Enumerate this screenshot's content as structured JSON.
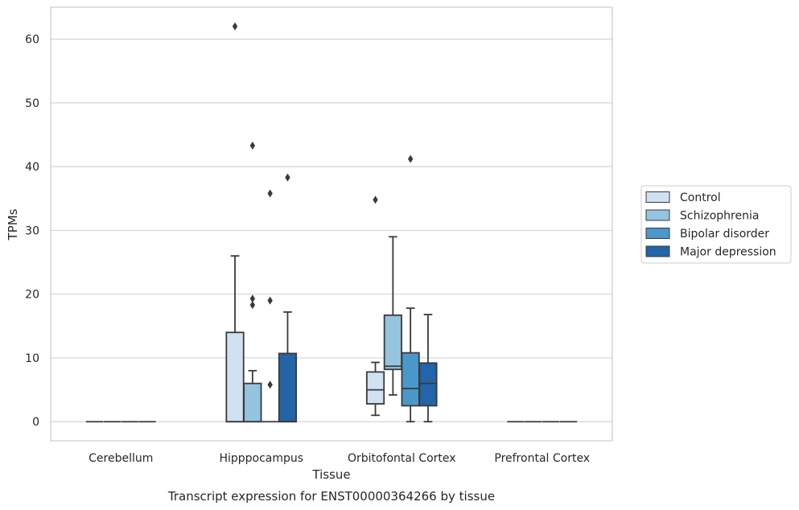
{
  "chart_data": {
    "type": "box",
    "title": "Transcript expression for ENST00000364266 by tissue",
    "xlabel": "Tissue",
    "ylabel": "TPMs",
    "ylim": [
      -3,
      65
    ],
    "yticks": [
      0,
      10,
      20,
      30,
      40,
      50,
      60
    ],
    "grid": true,
    "legend_position": "right",
    "categories": [
      "Cerebellum",
      "Hipppocampus",
      "Orbitofontal Cortex",
      "Prefrontal Cortex"
    ],
    "series": [
      {
        "name": "Control",
        "color": "#d0e1f2",
        "boxes": [
          {
            "category": "Cerebellum",
            "min": 0,
            "q1": 0,
            "median": 0,
            "q3": 0,
            "max": 0,
            "outliers": []
          },
          {
            "category": "Hipppocampus",
            "min": 0,
            "q1": 0,
            "median": 0,
            "q3": 14,
            "max": 26,
            "outliers": [
              62
            ]
          },
          {
            "category": "Orbitofontal Cortex",
            "min": 1,
            "q1": 2.8,
            "median": 5,
            "q3": 7.8,
            "max": 9.3,
            "outliers": [
              34.8
            ]
          },
          {
            "category": "Prefrontal Cortex",
            "min": 0,
            "q1": 0,
            "median": 0,
            "q3": 0,
            "max": 0,
            "outliers": []
          }
        ]
      },
      {
        "name": "Schizophrenia",
        "color": "#94c4df",
        "boxes": [
          {
            "category": "Cerebellum",
            "min": 0,
            "q1": 0,
            "median": 0,
            "q3": 0,
            "max": 0,
            "outliers": []
          },
          {
            "category": "Hipppocampus",
            "min": 0,
            "q1": 0,
            "median": 0,
            "q3": 6,
            "max": 8,
            "outliers": [
              43.3,
              19.3,
              18.3
            ]
          },
          {
            "category": "Orbitofontal Cortex",
            "min": 4.2,
            "q1": 8.2,
            "median": 8.7,
            "q3": 16.7,
            "max": 29,
            "outliers": []
          },
          {
            "category": "Prefrontal Cortex",
            "min": 0,
            "q1": 0,
            "median": 0,
            "q3": 0,
            "max": 0,
            "outliers": []
          }
        ]
      },
      {
        "name": "Bipolar disorder",
        "color": "#4a98c9",
        "boxes": [
          {
            "category": "Cerebellum",
            "min": 0,
            "q1": 0,
            "median": 0,
            "q3": 0,
            "max": 0,
            "outliers": []
          },
          {
            "category": "Hipppocampus",
            "min": 0,
            "q1": 0,
            "median": 0,
            "q3": 0,
            "max": 0,
            "outliers": [
              35.8,
              19,
              5.8
            ]
          },
          {
            "category": "Orbitofontal Cortex",
            "min": 0,
            "q1": 2.5,
            "median": 5.2,
            "q3": 10.8,
            "max": 17.8,
            "outliers": [
              41.2
            ]
          },
          {
            "category": "Prefrontal Cortex",
            "min": 0,
            "q1": 0,
            "median": 0,
            "q3": 0,
            "max": 0,
            "outliers": []
          }
        ]
      },
      {
        "name": "Major depression",
        "color": "#2464a8",
        "boxes": [
          {
            "category": "Cerebellum",
            "min": 0,
            "q1": 0,
            "median": 0,
            "q3": 0,
            "max": 0,
            "outliers": []
          },
          {
            "category": "Hipppocampus",
            "min": 0,
            "q1": 0,
            "median": 0,
            "q3": 10.7,
            "max": 17.2,
            "outliers": [
              38.3
            ]
          },
          {
            "category": "Orbitofontal Cortex",
            "min": 0,
            "q1": 2.5,
            "median": 6,
            "q3": 9.2,
            "max": 16.8,
            "outliers": []
          },
          {
            "category": "Prefrontal Cortex",
            "min": 0,
            "q1": 0,
            "median": 0,
            "q3": 0,
            "max": 0,
            "outliers": []
          }
        ]
      }
    ]
  }
}
